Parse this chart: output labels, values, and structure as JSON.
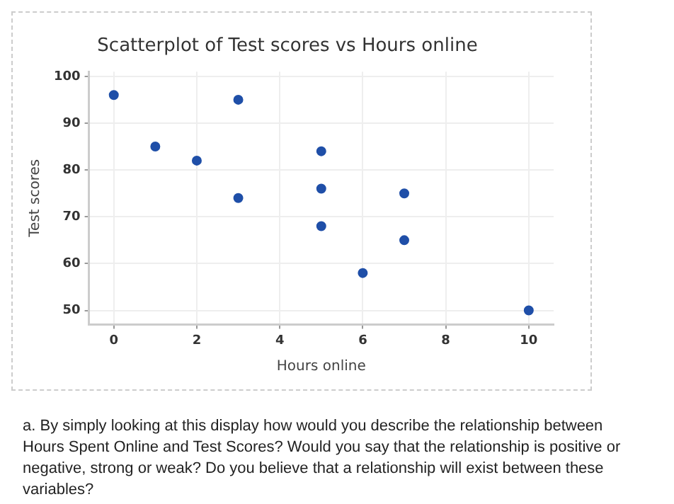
{
  "chart_data": {
    "type": "scatter",
    "title": "Scatterplot of Test scores vs Hours online",
    "xlabel": "Hours online",
    "ylabel": "Test scores",
    "x": [
      0,
      1,
      2,
      3,
      3,
      5,
      5,
      5,
      6,
      7,
      7,
      10
    ],
    "series": [
      {
        "color": "#1f4fa8",
        "values": [
          96,
          85,
          82,
          95,
          74,
          84,
          76,
          68,
          58,
          75,
          65,
          50
        ]
      }
    ],
    "xlim": [
      -0.6,
      10.6
    ],
    "ylim": [
      47,
      101
    ],
    "xticks": [
      0,
      2,
      4,
      6,
      8,
      10
    ],
    "yticks": [
      50,
      60,
      70,
      80,
      90,
      100
    ],
    "grid": true,
    "legend": false,
    "marker": "circle",
    "annotations": [
      "a.  By simply looking at this display how would you describe the relationship between Hours Spent Online and Test Scores?  Would you say that the relationship is positive or negative, strong or weak?  Do you believe that a relationship will exist between these variables?"
    ]
  }
}
